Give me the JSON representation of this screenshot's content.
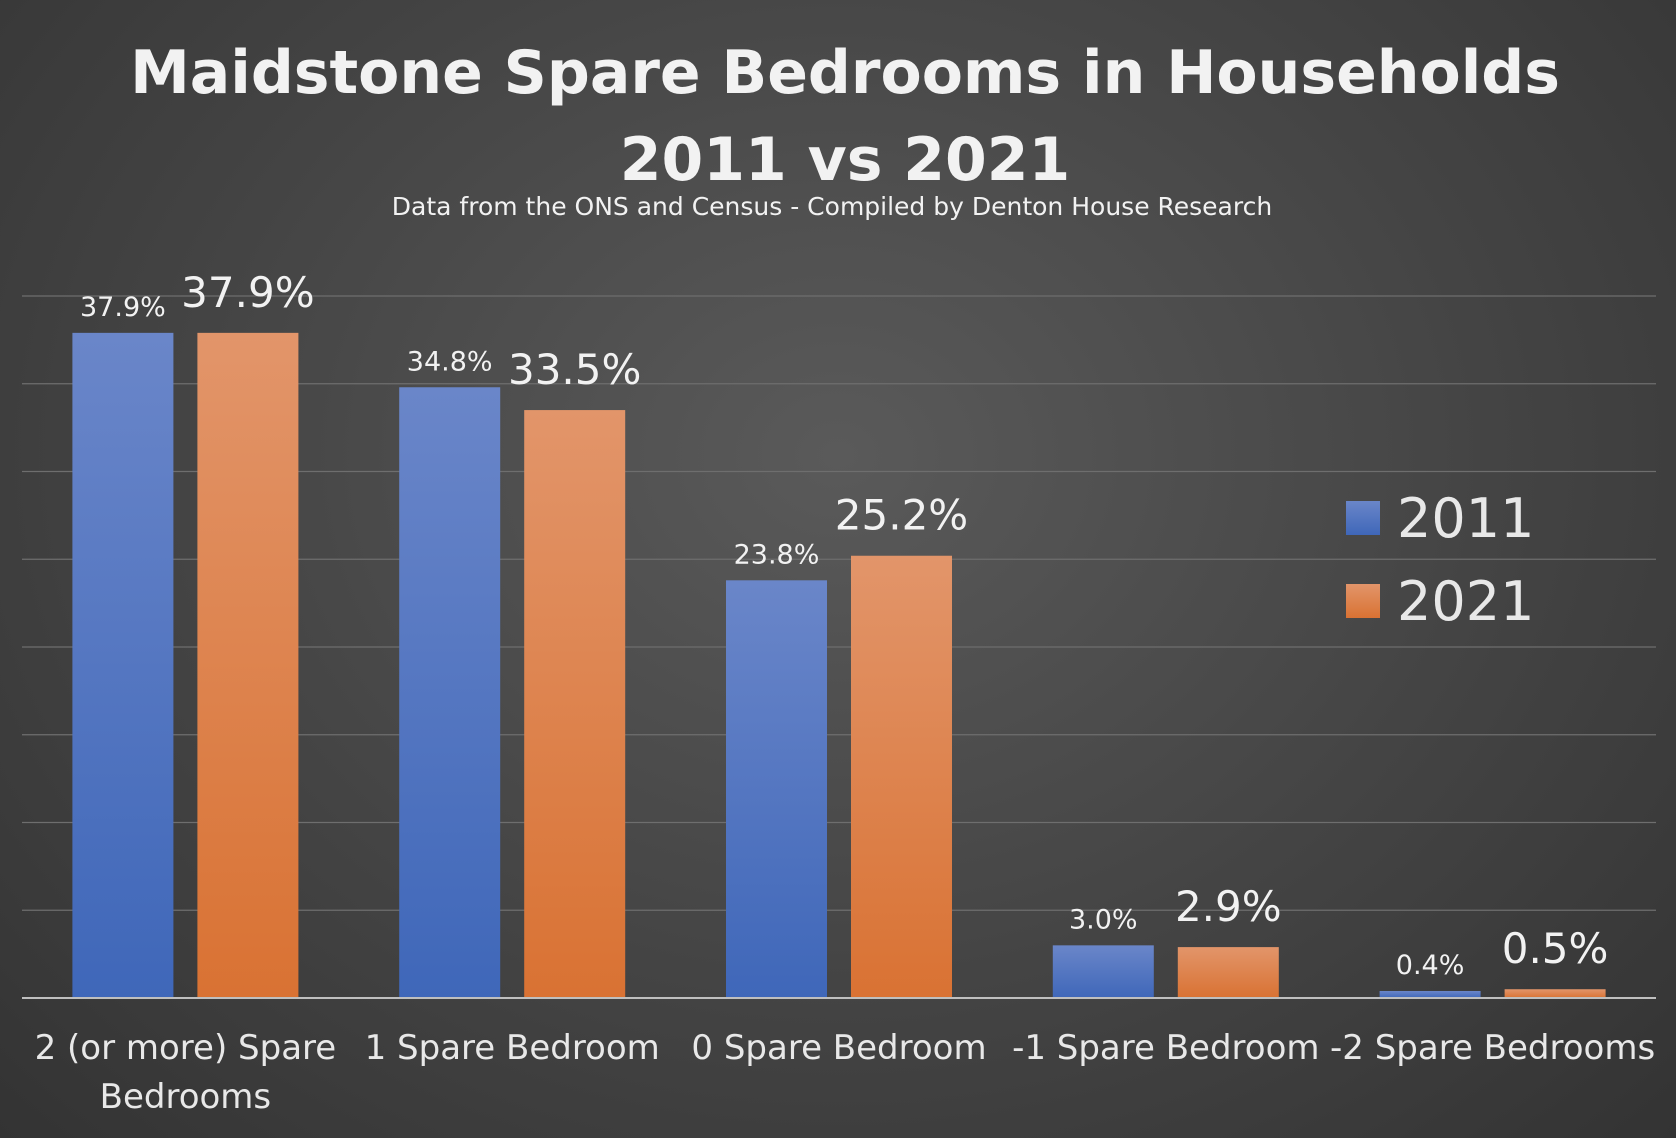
{
  "chart_data": {
    "type": "bar",
    "title_line1": "Maidstone Spare Bedrooms in Households",
    "title_line2": "2011 vs 2021",
    "subtitle": "Data from the ONS and Census - Compiled by Denton House Research",
    "categories": [
      [
        "2 (or more) Spare",
        "Bedrooms"
      ],
      [
        "1 Spare Bedroom"
      ],
      [
        "0 Spare Bedroom"
      ],
      [
        "-1 Spare Bedroom"
      ],
      [
        "-2 Spare Bedrooms"
      ]
    ],
    "series": [
      {
        "name": "2011",
        "values": [
          37.9,
          34.8,
          23.8,
          3.0,
          0.4
        ],
        "labels": [
          "37.9%",
          "34.8%",
          "23.8%",
          "3.0%",
          "0.4%"
        ],
        "color": "#4472C4"
      },
      {
        "name": "2021",
        "values": [
          37.9,
          33.5,
          25.2,
          2.9,
          0.5
        ],
        "labels": [
          "37.9%",
          "33.5%",
          "25.2%",
          "2.9%",
          "0.5%"
        ],
        "color": "#ED7D31"
      }
    ],
    "ylim": [
      0,
      40
    ],
    "grid": true,
    "legend_position": "right",
    "xlabel": "",
    "ylabel": ""
  }
}
